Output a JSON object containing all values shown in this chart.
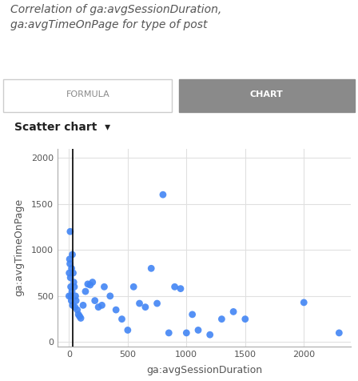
{
  "title": "Correlation of ga:avgSessionDuration,\nga:avgTimeOnPage for type of post",
  "xlabel": "ga:avgSessionDuration",
  "ylabel": "ga:avgTimeOnPage",
  "scatter_label": "Scatter chart",
  "tab_formula": "FORMULA",
  "tab_chart": "CHART",
  "dot_color": "#4285f4",
  "dot_size": 40,
  "xlim": [
    -100,
    2400
  ],
  "ylim": [
    -50,
    2100
  ],
  "xticks": [
    0,
    500,
    1000,
    1500,
    2000
  ],
  "yticks": [
    0,
    500,
    1000,
    1500,
    2000
  ],
  "x": [
    0,
    2,
    5,
    8,
    10,
    12,
    15,
    18,
    20,
    22,
    25,
    28,
    30,
    35,
    40,
    45,
    50,
    55,
    60,
    70,
    80,
    90,
    100,
    120,
    140,
    160,
    180,
    200,
    220,
    250,
    280,
    300,
    350,
    400,
    450,
    500,
    550,
    600,
    650,
    700,
    750,
    800,
    850,
    900,
    950,
    1000,
    1050,
    1100,
    1200,
    1300,
    1400,
    1500,
    2000,
    2300
  ],
  "y": [
    500,
    750,
    900,
    850,
    1200,
    700,
    600,
    500,
    450,
    800,
    550,
    950,
    400,
    750,
    650,
    600,
    380,
    500,
    450,
    350,
    300,
    280,
    260,
    400,
    550,
    630,
    620,
    650,
    450,
    380,
    400,
    600,
    500,
    350,
    250,
    130,
    600,
    420,
    380,
    800,
    420,
    1600,
    100,
    600,
    580,
    100,
    300,
    130,
    80,
    250,
    330,
    250,
    430,
    100
  ],
  "vline_x": 30,
  "background_color": "#ffffff",
  "plot_bg_color": "#ffffff",
  "grid_color": "#e0e0e0",
  "title_color": "#555555",
  "axis_label_color": "#555555",
  "tab_bg_active": "#8a8a8a",
  "tab_bg_inactive": "#ffffff",
  "tab_text_active": "#ffffff",
  "tab_text_inactive": "#8a8a8a"
}
